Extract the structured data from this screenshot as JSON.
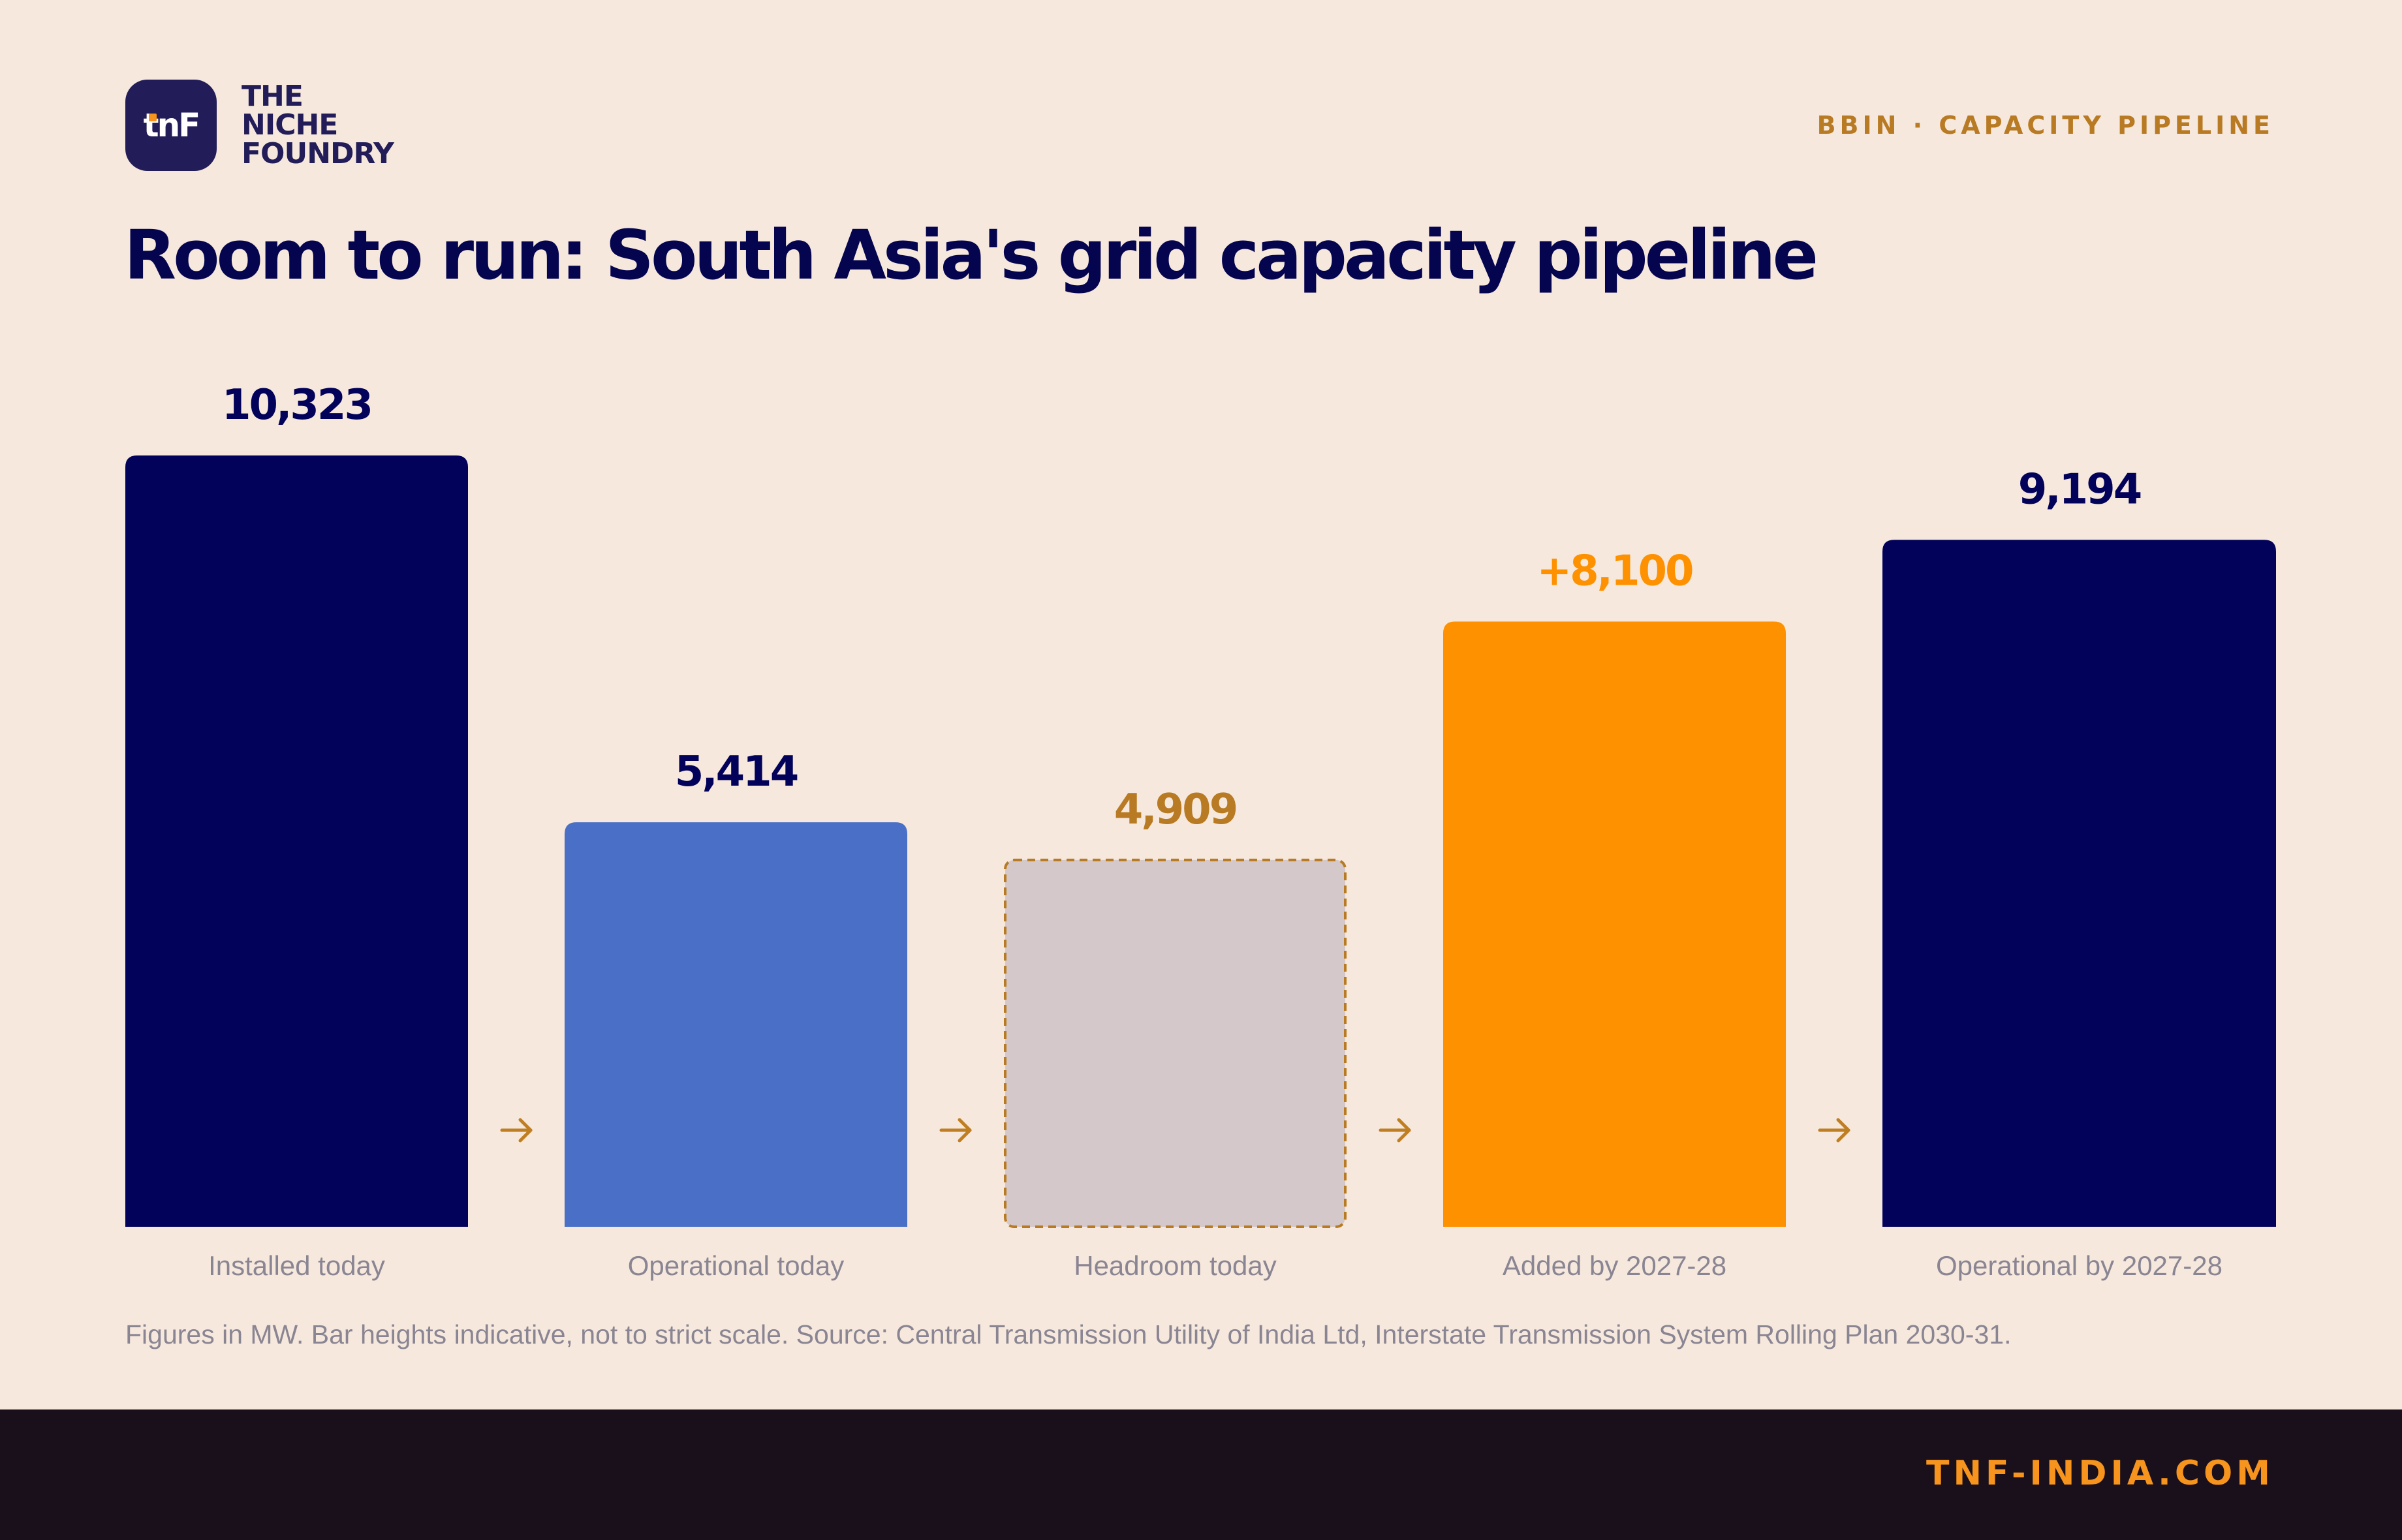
{
  "brand": {
    "logo_text": "tnF",
    "name_lines": [
      "THE",
      "NICHE",
      "FOUNDRY"
    ]
  },
  "kicker": "BBIN · CAPACITY PIPELINE",
  "footnote": "Figures in MW. Bar heights indicative, not to strict scale. Source: Central Transmission Utility of India Ltd, Interstate Transmission System Rolling Plan 2030-31.",
  "footer_url": "TNF-INDIA.COM",
  "colors": {
    "navy": "#02025a",
    "blue": "#4a6fc7",
    "grey": "#d4c8ca",
    "orange": "#fe9100",
    "gold": "#b87a22",
    "arrow": "#c07e22"
  },
  "chart_data": {
    "type": "bar",
    "title": "Room to run: South Asia's grid capacity pipeline",
    "unit": "MW",
    "categories": [
      "Installed today",
      "Operational today",
      "Headroom today",
      "Added by 2027-28",
      "Operational by 2027-28"
    ],
    "values": [
      10323,
      5414,
      4909,
      8100,
      9194
    ],
    "value_labels": [
      "10,323",
      "5,414",
      "4,909",
      "+8,100",
      "9,194"
    ],
    "bar_colors": [
      "#02025a",
      "#4a6fc7",
      "#d4c8ca",
      "#fe9100",
      "#02025a"
    ],
    "label_colors": [
      "#02025a",
      "#02025a",
      "#b87a22",
      "#fe9100",
      "#02025a"
    ],
    "dashed": [
      false,
      false,
      true,
      false,
      false
    ],
    "ylim": [
      0,
      10323
    ],
    "grid": false,
    "legend": "none"
  }
}
